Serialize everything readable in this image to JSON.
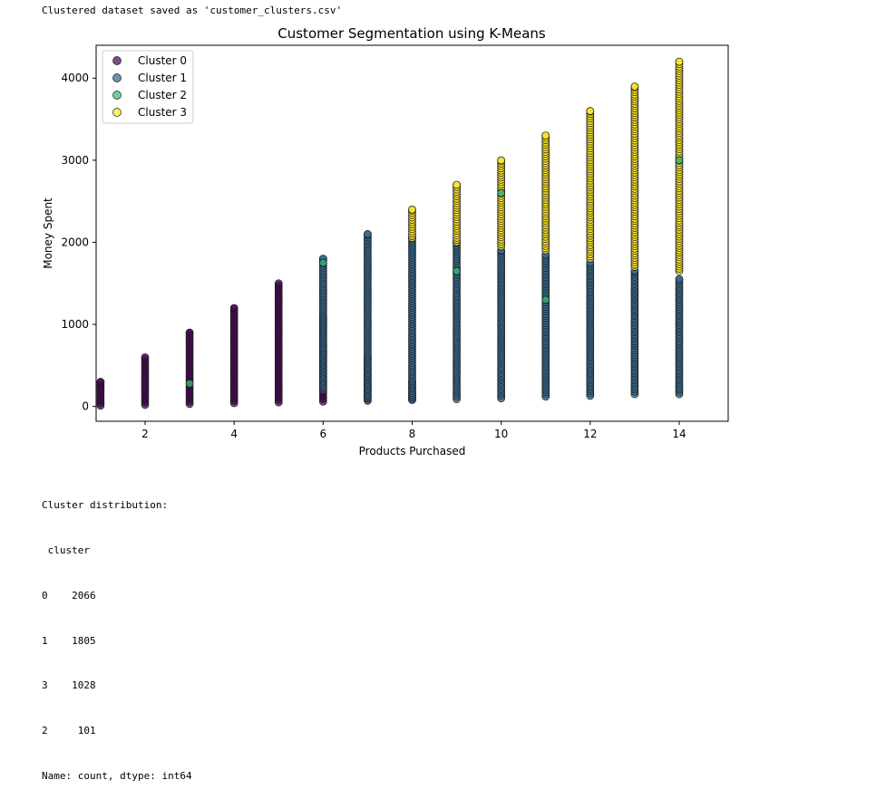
{
  "output": {
    "top_line": "Clustered dataset saved as 'customer_clusters.csv'",
    "distribution_header": "Cluster distribution:",
    "index_name": " cluster",
    "rows": [
      {
        "index": "0",
        "count": "2066"
      },
      {
        "index": "1",
        "count": "1805"
      },
      {
        "index": "3",
        "count": "1028"
      },
      {
        "index": "2",
        "count": " 101"
      }
    ],
    "footer": "Name: count, dtype: int64"
  },
  "chart_data": {
    "type": "scatter",
    "title": "Customer Segmentation using K-Means",
    "xlabel": "Products Purchased",
    "ylabel": "Money Spent",
    "xlim": [
      0.9,
      15.1
    ],
    "ylim": [
      -180,
      4400
    ],
    "xticks": [
      2,
      4,
      6,
      8,
      10,
      12,
      14
    ],
    "yticks": [
      0,
      1000,
      2000,
      3000,
      4000
    ],
    "grid": false,
    "legend_position": "top-left",
    "colors": {
      "cluster0": "#440154",
      "cluster1": "#31688e",
      "cluster2": "#35b779",
      "cluster3": "#fde725",
      "edge": "#1a1a1a"
    },
    "series": [
      {
        "name": "Cluster 0",
        "color": "#440154",
        "columns": [
          {
            "x": 1,
            "min": 10,
            "max": 300
          },
          {
            "x": 2,
            "min": 20,
            "max": 600
          },
          {
            "x": 3,
            "min": 30,
            "max": 900
          },
          {
            "x": 4,
            "min": 40,
            "max": 1200
          },
          {
            "x": 5,
            "min": 50,
            "max": 1500
          },
          {
            "x": 6,
            "min": 60,
            "max": 1100
          },
          {
            "x": 7,
            "min": 70,
            "max": 600
          },
          {
            "x": 8,
            "min": 80,
            "max": 300
          }
        ]
      },
      {
        "name": "Cluster 1",
        "color": "#31688e",
        "columns": [
          {
            "x": 6,
            "min": 200,
            "max": 1800
          },
          {
            "x": 7,
            "min": 100,
            "max": 2100
          },
          {
            "x": 8,
            "min": 80,
            "max": 2050
          },
          {
            "x": 9,
            "min": 90,
            "max": 2000
          },
          {
            "x": 10,
            "min": 100,
            "max": 1900
          },
          {
            "x": 11,
            "min": 120,
            "max": 1850
          },
          {
            "x": 12,
            "min": 130,
            "max": 1750
          },
          {
            "x": 13,
            "min": 150,
            "max": 1650
          },
          {
            "x": 14,
            "min": 150,
            "max": 1550
          }
        ]
      },
      {
        "name": "Cluster 2",
        "color": "#35b779",
        "points": [
          {
            "x": 3,
            "y": 280
          },
          {
            "x": 6,
            "y": 1750
          },
          {
            "x": 9,
            "y": 1650
          },
          {
            "x": 10,
            "y": 2600
          },
          {
            "x": 11,
            "y": 1300
          },
          {
            "x": 14,
            "y": 3000
          }
        ]
      },
      {
        "name": "Cluster 3",
        "color": "#fde725",
        "columns": [
          {
            "x": 8,
            "min": 2050,
            "max": 2400
          },
          {
            "x": 9,
            "min": 2000,
            "max": 2700
          },
          {
            "x": 10,
            "min": 1950,
            "max": 3000
          },
          {
            "x": 11,
            "min": 1900,
            "max": 3300
          },
          {
            "x": 12,
            "min": 1800,
            "max": 3600
          },
          {
            "x": 13,
            "min": 1700,
            "max": 3900
          },
          {
            "x": 14,
            "min": 1650,
            "max": 4200
          }
        ]
      }
    ]
  }
}
